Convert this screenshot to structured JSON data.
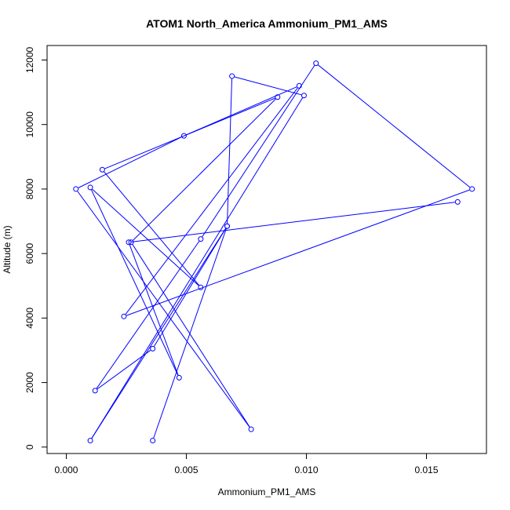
{
  "chart_data": {
    "type": "line",
    "title": "ATOM1 North_America Ammonium_PM1_AMS",
    "xlabel": "Ammonium_PM1_AMS",
    "ylabel": "Altitude (m)",
    "xlim": [
      -0.0008,
      0.0175
    ],
    "ylim": [
      -200,
      12450
    ],
    "xticks": [
      0.0,
      0.005,
      0.01,
      0.015
    ],
    "xtick_labels": [
      "0.000",
      "0.005",
      "0.010",
      "0.015"
    ],
    "yticks": [
      0,
      2000,
      4000,
      6000,
      8000,
      10000,
      12000
    ],
    "ytick_labels": [
      "0",
      "2000",
      "4000",
      "6000",
      "8000",
      "10000",
      "12000"
    ],
    "grid": false,
    "series": [
      {
        "color": "#0000ff",
        "marker": "open-circle",
        "x": [
          0.0036,
          0.0067,
          0.001,
          0.0099,
          0.0069,
          0.0067,
          0.0036,
          0.0012,
          0.0056,
          0.0104,
          0.0169,
          0.0024,
          0.0097,
          0.0049,
          0.0004,
          0.0077,
          0.0027,
          0.0088,
          0.0015,
          0.0056,
          0.001,
          0.0047,
          0.0026,
          0.0163
        ],
        "y": [
          200,
          6850,
          200,
          10900,
          11500,
          6850,
          3050,
          1750,
          6450,
          11900,
          8000,
          4050,
          11200,
          9650,
          8000,
          550,
          6350,
          10850,
          8600,
          4950,
          8050,
          2150,
          6350,
          7600
        ]
      }
    ]
  }
}
